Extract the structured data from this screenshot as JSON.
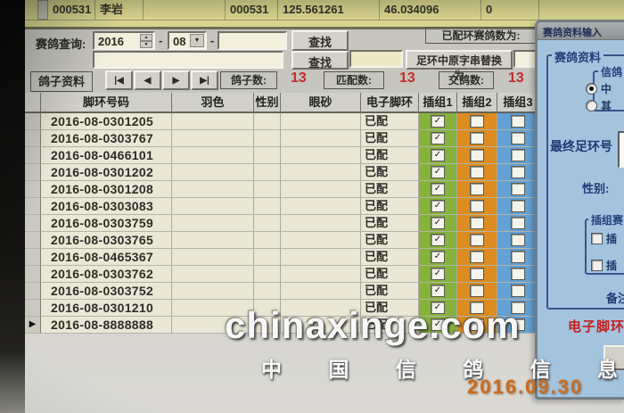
{
  "icons": {
    "spinner_up": "▲",
    "spinner_down": "▼",
    "dropdown": "▼",
    "row_arrow": "▶",
    "check": "✓"
  },
  "top_table": {
    "cells": [
      "000531",
      "李岩",
      "",
      "000531",
      "125.561261",
      "46.034096",
      "0",
      ""
    ]
  },
  "query": {
    "label": "赛鸽查询:",
    "year": "2016",
    "dash1": "-",
    "month": "08",
    "dash2": "-",
    "ring_input_value": "",
    "find_button": "查找",
    "find_button2": "查找",
    "matched_count_label": "已配环赛鸽数为:",
    "replace_source_value": "",
    "replace_button": "足环中原字串替换为",
    "replace_target_value": ""
  },
  "toolbar": {
    "pigeon_data_label": "鸽子资料",
    "nav_first": "|◀",
    "nav_prev": "◀",
    "nav_next": "▶",
    "nav_last": "▶|",
    "pigeon_count_label": "鸽子数:",
    "pigeon_count": "13",
    "match_count_label": "匹配数:",
    "match_count": "13",
    "deliver_count_label": "交鸽数:",
    "deliver_count": "13"
  },
  "table": {
    "headers": [
      "脚环号码",
      "羽色",
      "性别",
      "眼砂",
      "电子脚环",
      "插组1",
      "插组2",
      "插组3"
    ],
    "matched_text": "已配",
    "rows": [
      {
        "ring": "2016-08-0301205",
        "ering": "已配",
        "g1": true,
        "g2": false,
        "g3": false,
        "selected": false
      },
      {
        "ring": "2016-08-0303767",
        "ering": "已配",
        "g1": true,
        "g2": false,
        "g3": false,
        "selected": false
      },
      {
        "ring": "2016-08-0466101",
        "ering": "已配",
        "g1": true,
        "g2": false,
        "g3": false,
        "selected": false
      },
      {
        "ring": "2016-08-0301202",
        "ering": "已配",
        "g1": true,
        "g2": false,
        "g3": false,
        "selected": false
      },
      {
        "ring": "2016-08-0301208",
        "ering": "已配",
        "g1": true,
        "g2": false,
        "g3": false,
        "selected": false
      },
      {
        "ring": "2016-08-0303083",
        "ering": "已配",
        "g1": true,
        "g2": false,
        "g3": false,
        "selected": false
      },
      {
        "ring": "2016-08-0303759",
        "ering": "已配",
        "g1": true,
        "g2": false,
        "g3": false,
        "selected": false
      },
      {
        "ring": "2016-08-0303765",
        "ering": "已配",
        "g1": true,
        "g2": false,
        "g3": false,
        "selected": false
      },
      {
        "ring": "2016-08-0465367",
        "ering": "已配",
        "g1": true,
        "g2": false,
        "g3": false,
        "selected": false
      },
      {
        "ring": "2016-08-0303762",
        "ering": "已配",
        "g1": true,
        "g2": false,
        "g3": false,
        "selected": false
      },
      {
        "ring": "2016-08-0303752",
        "ering": "已配",
        "g1": true,
        "g2": false,
        "g3": false,
        "selected": false
      },
      {
        "ring": "2016-08-0301210",
        "ering": "已配",
        "g1": true,
        "g2": false,
        "g3": false,
        "selected": false
      },
      {
        "ring": "2016-08-8888888",
        "ering": "已配",
        "g1": true,
        "g2": false,
        "g3": false,
        "selected": true
      }
    ]
  },
  "dialog": {
    "title": "赛鸽资料输入",
    "group_label": "赛鸽资料",
    "source_group_label": "信鸽",
    "radio_option1": "中",
    "radio_option2": "其",
    "final_ring_label": "最终足环号",
    "gender_label": "性别:",
    "insert_group_label": "插组赛",
    "insert_cb1": "插",
    "insert_cb2": "插",
    "remark_label": "备注",
    "ering_red_label": "电子脚环"
  },
  "watermark": {
    "site": "chinaxinge.com",
    "site_cn": "中 国 信 鸽 信 息 网",
    "date": "2016.09.30"
  },
  "colors": {
    "group1_green": "#85b23b",
    "group2_orange": "#dc8c20",
    "group3_blue": "#63a0d4",
    "count_red": "#c22e2e",
    "date_orange": "#cb6c20"
  }
}
